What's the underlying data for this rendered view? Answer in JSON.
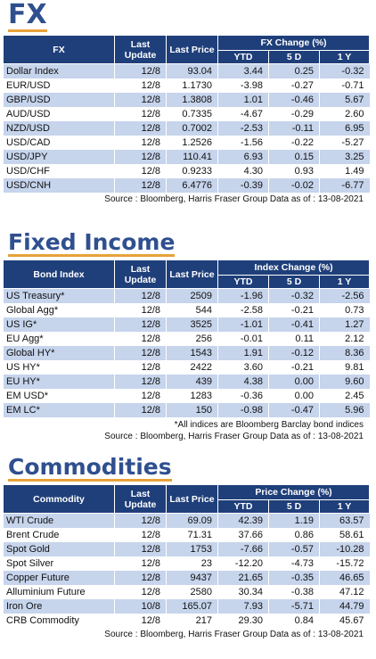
{
  "fx": {
    "title": "FX",
    "headers": {
      "name": "FX",
      "last_update": "Last Update",
      "last_price": "Last Price",
      "change_group": "FX Change (%)",
      "ytd": "YTD",
      "d5": "5 D",
      "y1": "1 Y"
    },
    "rows": [
      [
        "Dollar Index",
        "12/8",
        "93.04",
        "3.44",
        "0.25",
        "-0.32"
      ],
      [
        "EUR/USD",
        "12/8",
        "1.1730",
        "-3.98",
        "-0.27",
        "-0.71"
      ],
      [
        "GBP/USD",
        "12/8",
        "1.3808",
        "1.01",
        "-0.46",
        "5.67"
      ],
      [
        "AUD/USD",
        "12/8",
        "0.7335",
        "-4.67",
        "-0.29",
        "2.60"
      ],
      [
        "NZD/USD",
        "12/8",
        "0.7002",
        "-2.53",
        "-0.11",
        "6.95"
      ],
      [
        "USD/CAD",
        "12/8",
        "1.2526",
        "-1.56",
        "-0.22",
        "-5.27"
      ],
      [
        "USD/JPY",
        "12/8",
        "110.41",
        "6.93",
        "0.15",
        "3.25"
      ],
      [
        "USD/CHF",
        "12/8",
        "0.9233",
        "4.30",
        "0.93",
        "1.49"
      ],
      [
        "USD/CNH",
        "12/8",
        "6.4776",
        "-0.39",
        "-0.02",
        "-6.77"
      ]
    ],
    "source": "Source : Bloomberg, Harris Fraser Group Data as of : 13-08-2021"
  },
  "fixed_income": {
    "title": "Fixed Income",
    "headers": {
      "name": "Bond Index",
      "last_update": "Last Update",
      "last_price": "Last Price",
      "change_group": "Index Change (%)",
      "ytd": "YTD",
      "d5": "5 D",
      "y1": "1 Y"
    },
    "rows": [
      [
        "US Treasury*",
        "12/8",
        "2509",
        "-1.96",
        "-0.32",
        "-2.56"
      ],
      [
        "Global Agg*",
        "12/8",
        "544",
        "-2.58",
        "-0.21",
        "0.73"
      ],
      [
        "US IG*",
        "12/8",
        "3525",
        "-1.01",
        "-0.41",
        "1.27"
      ],
      [
        "EU Agg*",
        "12/8",
        "256",
        "-0.01",
        "0.11",
        "2.12"
      ],
      [
        "Global HY*",
        "12/8",
        "1543",
        "1.91",
        "-0.12",
        "8.36"
      ],
      [
        "US HY*",
        "12/8",
        "2422",
        "3.60",
        "-0.21",
        "9.81"
      ],
      [
        "EU HY*",
        "12/8",
        "439",
        "4.38",
        "0.00",
        "9.60"
      ],
      [
        "EM USD*",
        "12/8",
        "1283",
        "-0.36",
        "0.00",
        "2.45"
      ],
      [
        "EM LC*",
        "12/8",
        "150",
        "-0.98",
        "-0.47",
        "5.96"
      ]
    ],
    "note": "*All indices are Bloomberg Barclay bond indices",
    "source": "Source : Bloomberg, Harris Fraser Group Data as of : 13-08-2021"
  },
  "commodities": {
    "title": "Commodities",
    "headers": {
      "name": "Commodity",
      "last_update": "Last Update",
      "last_price": "Last Price",
      "change_group": "Price Change (%)",
      "ytd": "YTD",
      "d5": "5 D",
      "y1": "1 Y"
    },
    "rows": [
      [
        "WTI Crude",
        "12/8",
        "69.09",
        "42.39",
        "1.19",
        "63.57"
      ],
      [
        "Brent Crude",
        "12/8",
        "71.31",
        "37.66",
        "0.86",
        "58.61"
      ],
      [
        "Spot Gold",
        "12/8",
        "1753",
        "-7.66",
        "-0.57",
        "-10.28"
      ],
      [
        "Spot Silver",
        "12/8",
        "23",
        "-12.20",
        "-4.73",
        "-15.72"
      ],
      [
        "Copper Future",
        "12/8",
        "9437",
        "21.65",
        "-0.35",
        "46.65"
      ],
      [
        "Alluminium Future",
        "12/8",
        "2580",
        "30.34",
        "-0.38",
        "47.12"
      ],
      [
        "Iron Ore",
        "10/8",
        "165.07",
        "7.93",
        "-5.71",
        "44.79"
      ],
      [
        "CRB Commodity",
        "12/8",
        "217",
        "29.30",
        "0.84",
        "45.67"
      ]
    ],
    "source": "Source : Bloomberg, Harris Fraser Group Data as of : 13-08-2021"
  },
  "colors": {
    "header_bg": "#1f3f7a",
    "shade_row": "#c6d4ec",
    "title": "#2f4f8f",
    "title_underline": "#e8a23a"
  }
}
